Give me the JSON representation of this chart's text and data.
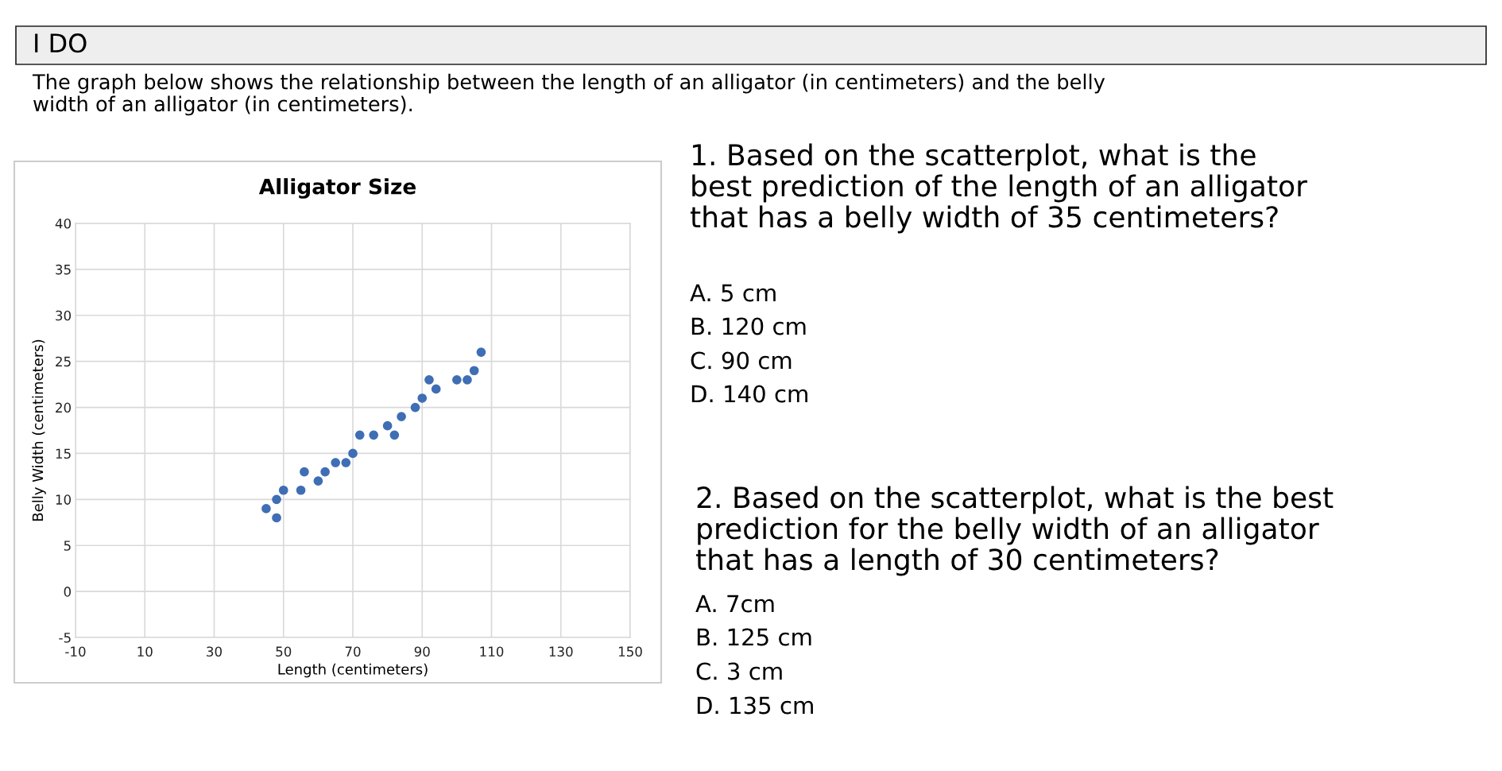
{
  "chart_data": {
    "type": "scatter",
    "title": "Alligator Size",
    "xlabel": "Length (centimeters)",
    "ylabel": "Belly Width (centimeters)",
    "x": [
      45,
      48,
      48,
      50,
      55,
      56,
      60,
      62,
      65,
      68,
      70,
      72,
      76,
      80,
      82,
      84,
      88,
      90,
      92,
      94,
      100,
      103,
      105,
      107
    ],
    "series": [
      {
        "color": "#3f6eb5",
        "values": [
          9,
          10,
          8,
          11,
          11,
          13,
          12,
          13,
          14,
          14,
          15,
          17,
          17,
          18,
          17,
          19,
          20,
          21,
          23,
          22,
          23,
          23,
          24,
          26
        ]
      }
    ],
    "marker": "circle",
    "xlim": [
      -10,
      150
    ],
    "xticks": [
      -10,
      10,
      30,
      50,
      70,
      90,
      110,
      130,
      150
    ],
    "ylim": [
      -5,
      40
    ],
    "yticks": [
      -5,
      0,
      5,
      10,
      15,
      20,
      25,
      30,
      35,
      40
    ],
    "grid": true,
    "legend": false,
    "annotations": [
      "I DO",
      "The graph below shows the relationship between the length of an alligator (in centimeters) and the belly\nwidth of an alligator (in centimeters).",
      "1. Based on the scatterplot, what is the\nbest prediction of the length of an alligator\nthat has a belly width of 35 centimeters?",
      "A. 5 cm",
      "B. 120 cm",
      "C. 90 cm",
      "D. 140 cm",
      "2. Based on the scatterplot, what is the best\nprediction for the belly width of an alligator\nthat has a length of 30 centimeters?",
      "A. 7cm",
      "B. 125 cm",
      "C. 3 cm",
      "D. 135 cm"
    ]
  }
}
